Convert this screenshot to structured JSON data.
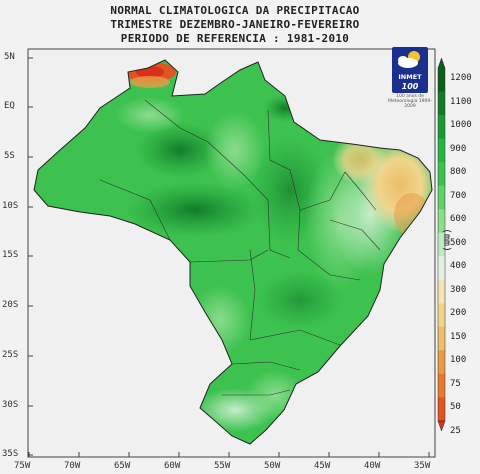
{
  "header": {
    "line1": "NORMAL CLIMATOLOGICA DA PRECIPITACAO",
    "line2": "TRIMESTRE DEZEMBRO-JANEIRO-FEVEREIRO",
    "line3": "PERIODO DE REFERENCIA : 1981-2010"
  },
  "logo": {
    "name": "INMET",
    "anniversary": "100",
    "subtitle": "100 anos de Meteorologia 1909-2009"
  },
  "latitude_labels": [
    "5N",
    "EQ",
    "5S",
    "10S",
    "15S",
    "20S",
    "25S",
    "30S",
    "35S"
  ],
  "longitude_labels": [
    "75W",
    "70W",
    "65W",
    "60W",
    "55W",
    "50W",
    "45W",
    "40W",
    "35W"
  ],
  "colorbar": {
    "unit": "(mm)",
    "levels": [
      "1200",
      "1100",
      "1000",
      "900",
      "800",
      "700",
      "600",
      "500",
      "400",
      "300",
      "200",
      "150",
      "100",
      "75",
      "50",
      "25"
    ],
    "colors": [
      "#0b5e1c",
      "#127a2a",
      "#1b9a34",
      "#27b43f",
      "#3dc24f",
      "#5fd06a",
      "#8cdc8e",
      "#bfe9c4",
      "#e3f1e4",
      "#f3e5b6",
      "#f0d58c",
      "#ecbd6a",
      "#e99a48",
      "#e6792e",
      "#e25522",
      "#d9301a"
    ]
  }
}
